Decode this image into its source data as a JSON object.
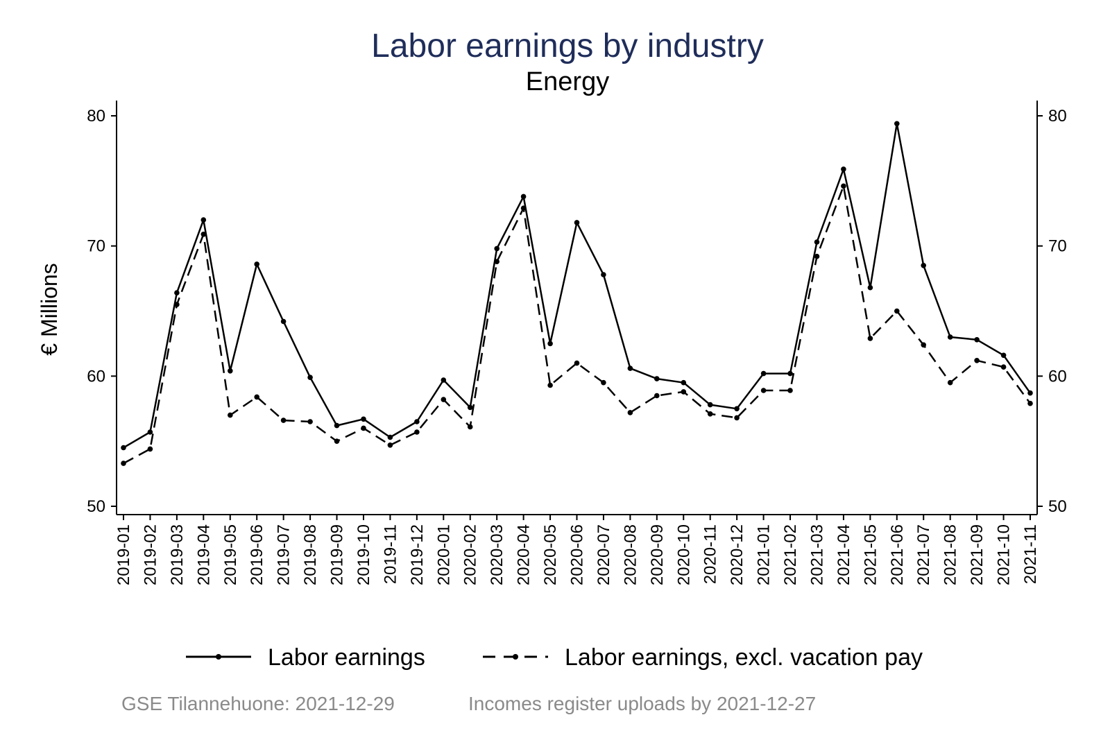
{
  "chart_data": {
    "type": "line",
    "title": "Labor earnings by industry",
    "subtitle": "Energy",
    "ylabel": "€ Millions",
    "xlabel": "",
    "ylim": [
      50,
      80
    ],
    "yticks": [
      50,
      60,
      70,
      80
    ],
    "grid": false,
    "legend_position": "bottom",
    "categories": [
      "2019-01",
      "2019-02",
      "2019-03",
      "2019-04",
      "2019-05",
      "2019-06",
      "2019-07",
      "2019-08",
      "2019-09",
      "2019-10",
      "2019-11",
      "2019-12",
      "2020-01",
      "2020-02",
      "2020-03",
      "2020-04",
      "2020-05",
      "2020-06",
      "2020-07",
      "2020-08",
      "2020-09",
      "2020-10",
      "2020-11",
      "2020-12",
      "2021-01",
      "2021-02",
      "2021-03",
      "2021-04",
      "2021-05",
      "2021-06",
      "2021-07",
      "2021-08",
      "2021-09",
      "2021-10",
      "2021-11"
    ],
    "series": [
      {
        "name": "Labor earnings",
        "style": "solid",
        "color": "#000000",
        "values": [
          54.5,
          55.7,
          66.4,
          72.0,
          60.4,
          68.6,
          64.2,
          59.9,
          56.2,
          56.7,
          55.3,
          56.5,
          59.7,
          57.6,
          69.8,
          73.8,
          62.5,
          71.8,
          67.8,
          60.6,
          59.8,
          59.5,
          57.8,
          57.5,
          60.2,
          60.2,
          70.3,
          75.9,
          66.8,
          79.4,
          68.5,
          63.0,
          62.8,
          61.6,
          58.7
        ]
      },
      {
        "name": "Labor earnings, excl. vacation pay",
        "style": "dashed",
        "color": "#000000",
        "values": [
          53.3,
          54.4,
          65.5,
          70.9,
          57.0,
          58.4,
          56.6,
          56.5,
          55.0,
          56.0,
          54.7,
          55.7,
          58.2,
          56.1,
          68.8,
          72.9,
          59.3,
          61.0,
          59.5,
          57.2,
          58.5,
          58.8,
          57.1,
          56.8,
          58.9,
          58.9,
          69.2,
          74.6,
          62.9,
          65.0,
          62.4,
          59.5,
          61.2,
          60.7,
          57.9
        ]
      }
    ]
  },
  "footer": {
    "left_note": "GSE Tilannehuone: 2021-12-29",
    "right_note": "Incomes register uploads by 2021-12-27"
  }
}
